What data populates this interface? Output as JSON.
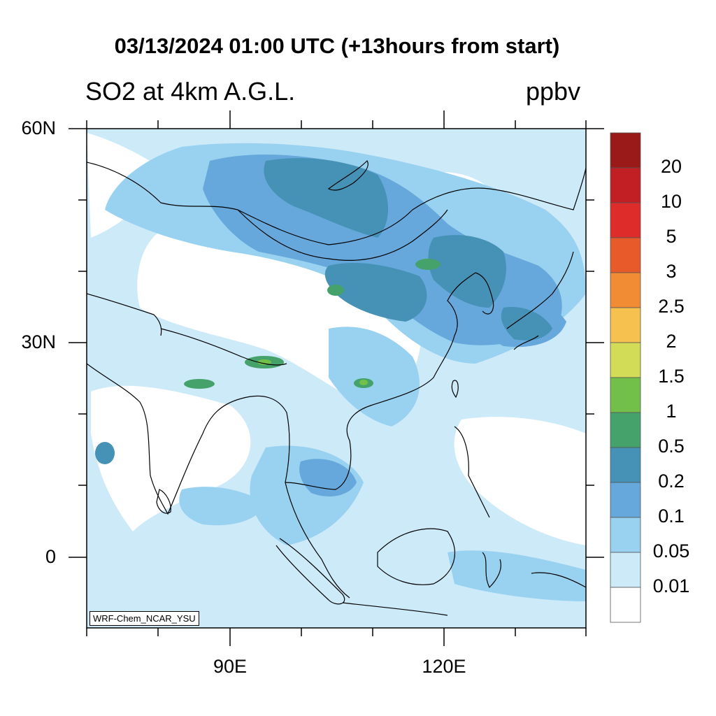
{
  "title": "03/13/2024 01:00 UTC (+13hours from start)",
  "left_title": "SO2 at 4km A.G.L.",
  "units": "ppbv",
  "credit": "WRF-Chem_NCAR_YSU",
  "lat_labels": [
    "60N",
    "30N",
    "0"
  ],
  "lon_labels": [
    "90E",
    "120E"
  ],
  "colorbar": {
    "labels": [
      "20",
      "10",
      "5",
      "3",
      "2.5",
      "2",
      "1.5",
      "1",
      "0.5",
      "0.2",
      "0.1",
      "0.05",
      "0.01"
    ],
    "colors": [
      "#9a1a1a",
      "#c21f24",
      "#de2c2a",
      "#e85a2a",
      "#f28c34",
      "#f7c14f",
      "#d3dc57",
      "#72c04a",
      "#45a26a",
      "#4592b6",
      "#66a8db",
      "#98d2f0",
      "#cdeaf9",
      "#ffffff"
    ]
  },
  "field_colors": {
    "ocean_bg": "#cdeaf9",
    "low": "#98d2f0",
    "mid": "#66a8db",
    "high": "#4592b6",
    "peak": "#45a26a",
    "max": "#72c04a"
  }
}
